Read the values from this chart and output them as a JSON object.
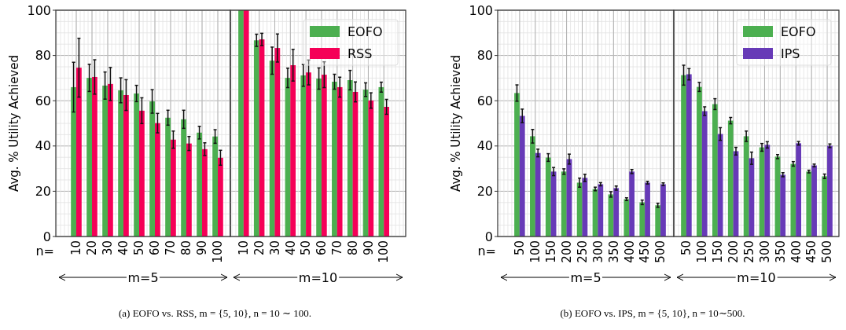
{
  "chart_data": [
    {
      "type": "bar",
      "ylabel": "Avg. % Utility Achieved",
      "categories": [
        "10",
        "20",
        "30",
        "40",
        "50",
        "60",
        "70",
        "80",
        "90",
        "100"
      ],
      "ylim": [
        0,
        100
      ],
      "yticks": [
        0,
        20,
        40,
        60,
        80,
        100
      ],
      "grid": true,
      "series": [
        {
          "color": "#4caf50",
          "values": [
            66,
            70.1,
            66.7,
            64.6,
            63.2,
            59.7,
            52.5,
            51.8,
            45.9,
            44.2
          ],
          "errors": [
            11,
            6,
            6,
            5.5,
            3.6,
            5.2,
            3.3,
            4,
            2.8,
            3
          ]
        },
        {
          "color": "#f50057",
          "values": [
            74.6,
            70.5,
            67.4,
            62.5,
            55.6,
            50.1,
            42.8,
            41.1,
            38.6,
            34.8
          ],
          "errors": [
            13,
            7.6,
            7.3,
            6.8,
            5.7,
            4.3,
            3.8,
            3.1,
            2.8,
            3.3
          ]
        }
      ],
      "annotations": [
        "n=",
        "m=5",
        "(a) EOFO vs. RSS, m = {5, 10}, n = 10 ∼ 100."
      ]
    },
    {
      "type": "bar",
      "categories": [
        "10",
        "20",
        "30",
        "40",
        "50",
        "60",
        "70",
        "80",
        "90",
        "100"
      ],
      "ylim": [
        0,
        100
      ],
      "yticks": [
        0,
        20,
        40,
        60,
        80,
        100
      ],
      "grid": true,
      "legend": "top right",
      "tick_labels": "x",
      "series": [
        {
          "name": "EOFO",
          "color": "#4caf50",
          "values": [
            100,
            86.7,
            77.7,
            70.1,
            71.2,
            69.8,
            68.4,
            69.1,
            64.9,
            66
          ],
          "errors": [
            null,
            2.7,
            6,
            4.3,
            4.8,
            4.7,
            3.3,
            4.3,
            3,
            2.2
          ]
        },
        {
          "name": "RSS",
          "color": "#f50057",
          "values": [
            100,
            87.1,
            83.3,
            75.7,
            72.5,
            71.5,
            66,
            63.9,
            60.1,
            57.3
          ],
          "errors": [
            null,
            2.7,
            6.2,
            7,
            5.5,
            5.7,
            4.4,
            4.4,
            3.4,
            3.3
          ]
        }
      ],
      "annotations": [
        "m=10"
      ]
    },
    {
      "type": "bar",
      "ylabel": "Avg. % Utility Achieved",
      "categories": [
        "50",
        "100",
        "150",
        "200",
        "250",
        "300",
        "350",
        "400",
        "450",
        "500"
      ],
      "ylim": [
        0,
        100
      ],
      "yticks": [
        0,
        20,
        40,
        60,
        80,
        100
      ],
      "grid": true,
      "series": [
        {
          "color": "#4caf50",
          "values": [
            63.4,
            44.3,
            34.9,
            28.7,
            23.8,
            21,
            18.6,
            16.5,
            15.1,
            13.8
          ],
          "errors": [
            3.6,
            3,
            1.7,
            1.2,
            2,
            0.8,
            1.2,
            0.6,
            1,
            0.9
          ]
        },
        {
          "color": "#673ab7",
          "values": [
            53.3,
            36.9,
            28.7,
            34.2,
            25.9,
            23.1,
            21.4,
            28.7,
            23.8,
            23.1
          ],
          "errors": [
            3,
            1.7,
            1.8,
            2.2,
            1.6,
            0.7,
            0.9,
            0.9,
            0.6,
            0.6
          ]
        }
      ],
      "annotations": [
        "n=",
        "m=5",
        "(b) EOFO vs. IPS, m = {5, 10}, n = 10∼500."
      ]
    },
    {
      "type": "bar",
      "categories": [
        "50",
        "100",
        "150",
        "200",
        "250",
        "300",
        "350",
        "400",
        "450",
        "500"
      ],
      "ylim": [
        0,
        100
      ],
      "yticks": [
        0,
        20,
        40,
        60,
        80,
        100
      ],
      "grid": true,
      "legend": "top right",
      "tick_labels": "x",
      "series": [
        {
          "name": "EOFO",
          "color": "#4caf50",
          "values": [
            71.3,
            66.1,
            58.5,
            51.2,
            44.3,
            39.4,
            35.3,
            32.1,
            28.7,
            26.6
          ],
          "errors": [
            4.4,
            2,
            2.4,
            1.4,
            2.3,
            1.7,
            0.9,
            1,
            0.6,
            1
          ]
        },
        {
          "name": "IPS",
          "color": "#673ab7",
          "values": [
            71.7,
            55.4,
            45.3,
            37.7,
            34.6,
            40.5,
            27.3,
            41.2,
            31.4,
            40.1
          ],
          "errors": [
            2.5,
            1.9,
            2.8,
            1.7,
            2.7,
            1.4,
            0.9,
            0.8,
            0.6,
            0.8
          ]
        }
      ],
      "annotations": [
        "m=10"
      ]
    }
  ]
}
